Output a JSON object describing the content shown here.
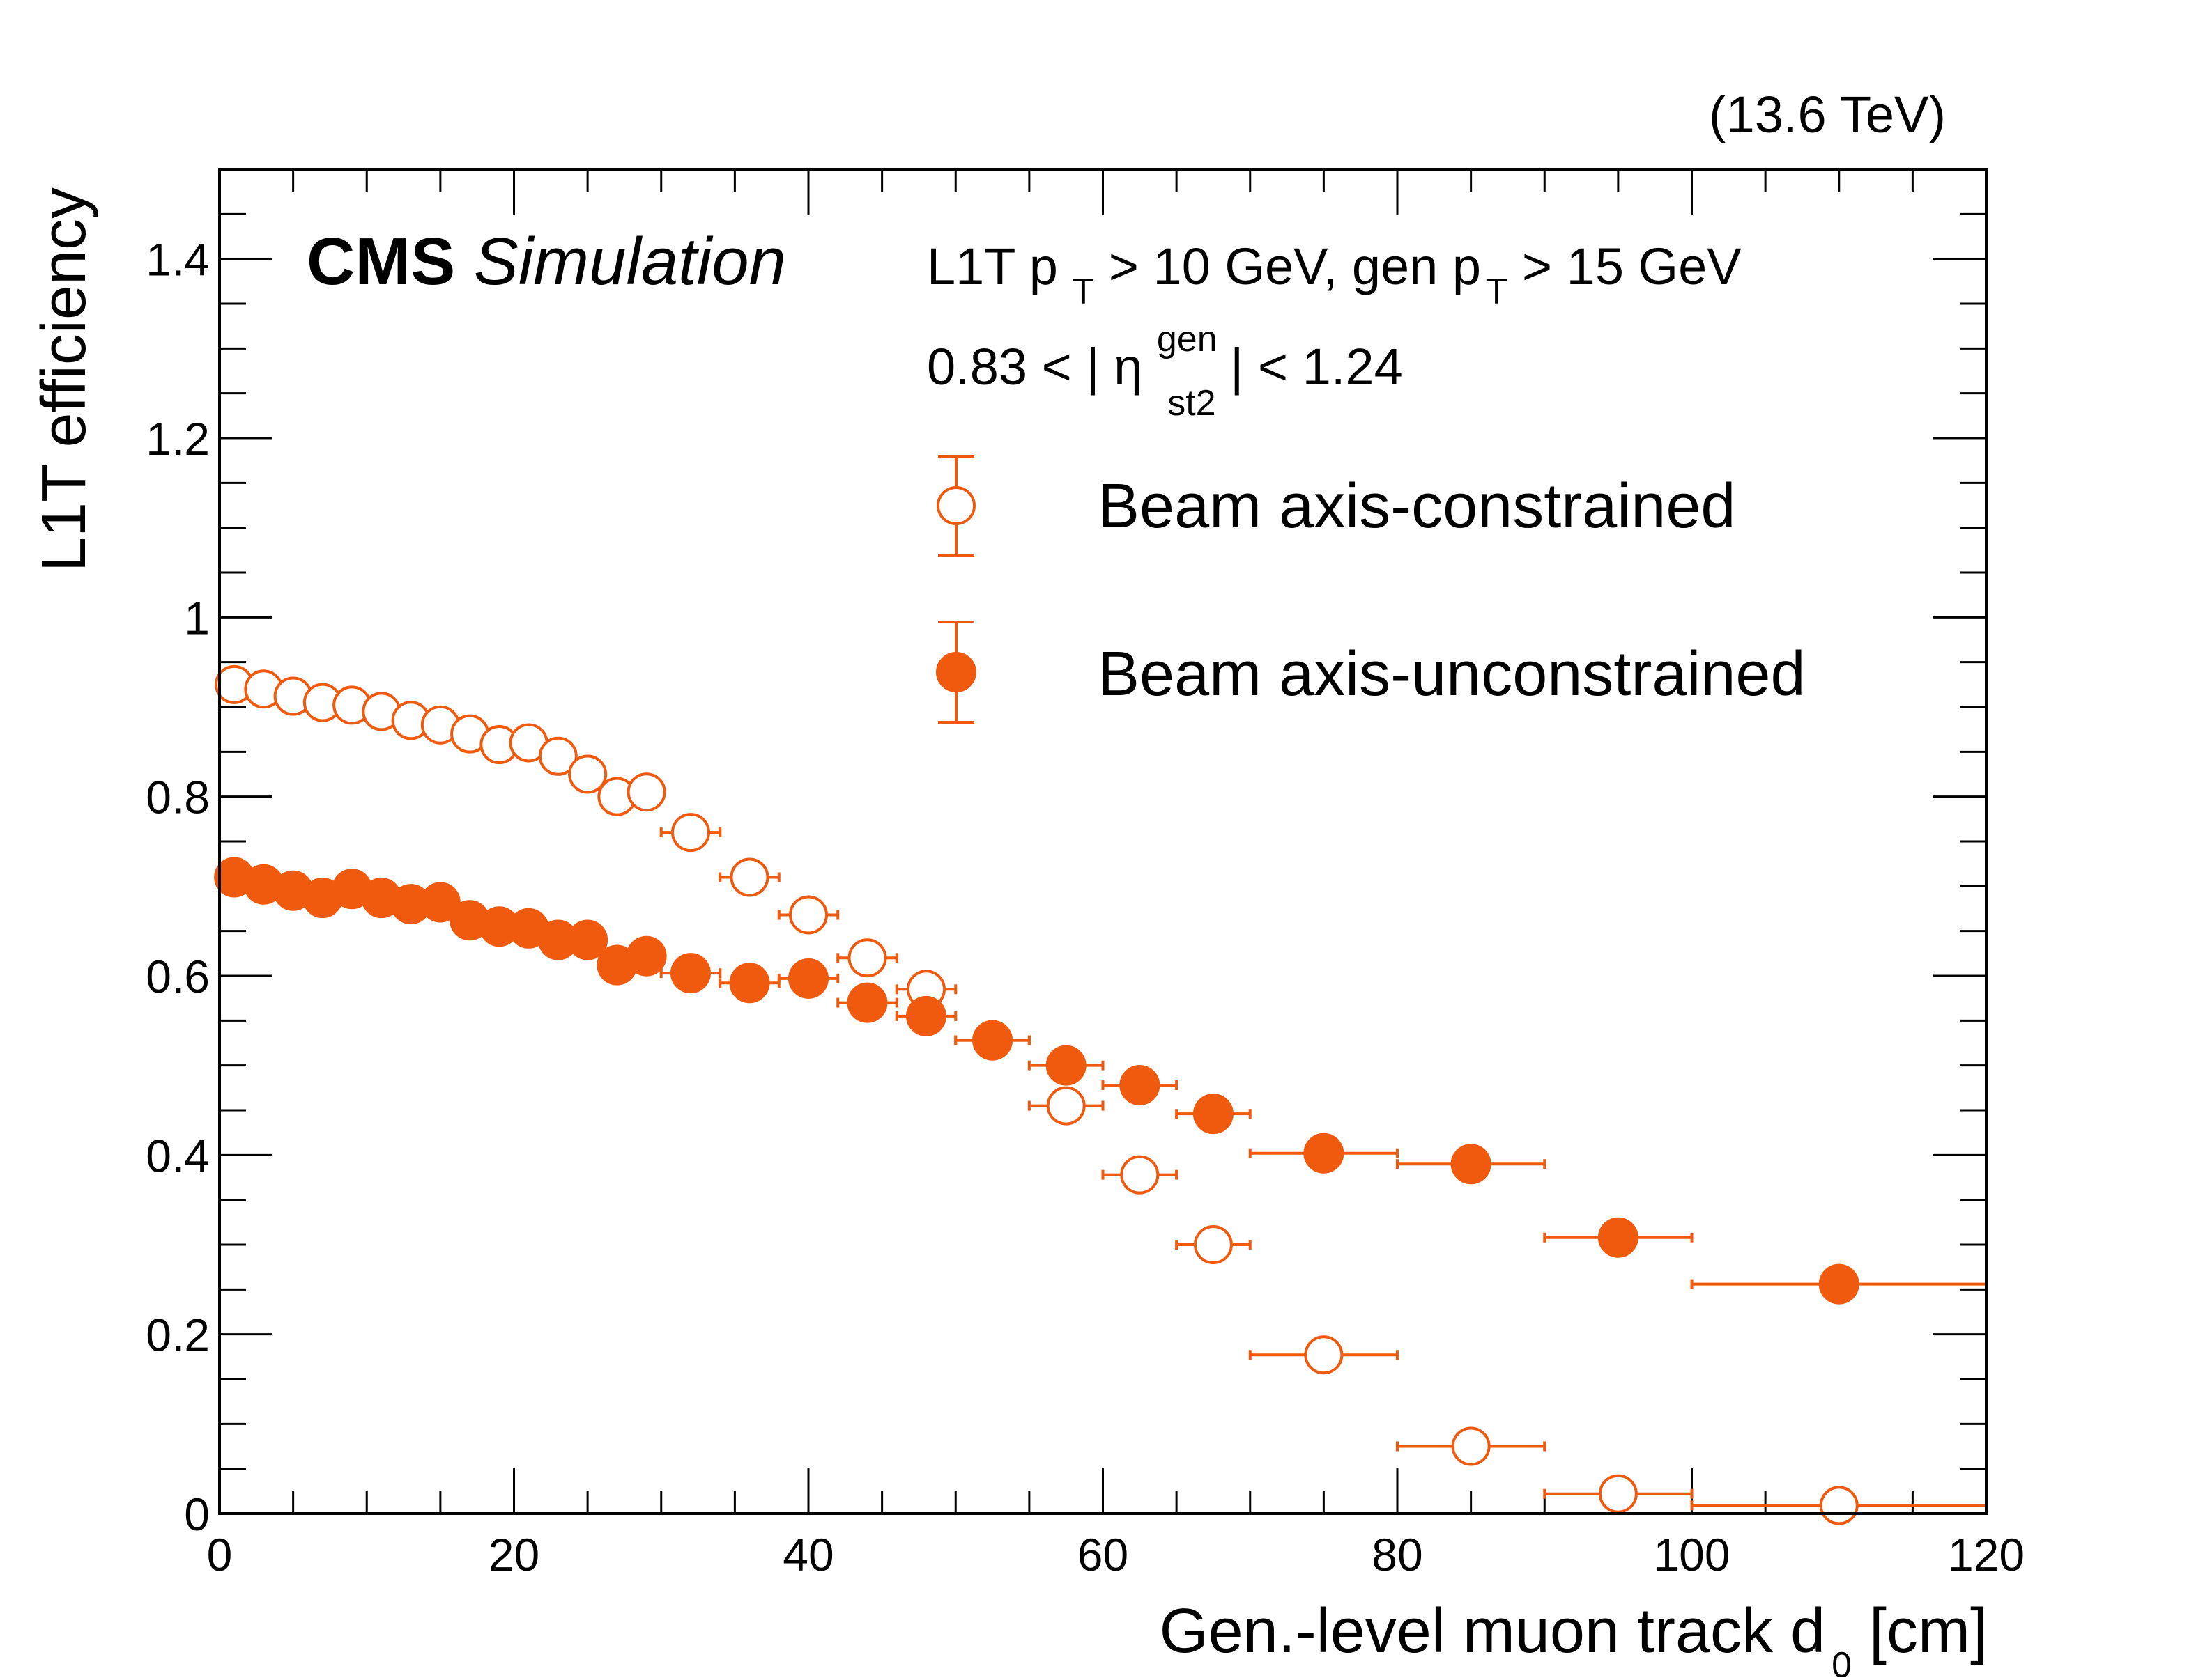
{
  "chart_data": {
    "type": "scatter",
    "experiment": "CMS",
    "label": "Simulation",
    "energy": "(13.6 TeV)",
    "xlabel": {
      "main": "Gen.-level muon track d",
      "sub": "0",
      "unit": " [cm]"
    },
    "ylabel": "L1T efficiency",
    "xlim": [
      0,
      120
    ],
    "ylim": [
      0,
      1.5
    ],
    "xticks": [
      0,
      20,
      40,
      60,
      80,
      100,
      120
    ],
    "xtick_labels": [
      "0",
      "20",
      "40",
      "60",
      "80",
      "100",
      "120"
    ],
    "yticks": [
      0,
      0.2,
      0.4,
      0.6,
      0.8,
      1,
      1.2,
      1.4
    ],
    "ytick_labels": [
      "0",
      "0.2",
      "0.4",
      "0.6",
      "0.8",
      "1",
      "1.2",
      "1.4"
    ],
    "selection": {
      "pt_l1t": "L1T p",
      "pt_sub": "T",
      "pt_l1t_rest": " > 10 GeV, gen p",
      "pt_gen_sub": "T",
      "pt_gen_rest": " > 15 GeV",
      "eta_pre": "0.83 < |",
      "eta_sym": "η",
      "eta_sup": "gen",
      "eta_sub": "st2",
      "eta_post": "| < 1.24"
    },
    "color": "#f05a0e",
    "series": [
      {
        "name": "Beam axis-constrained",
        "marker": "open-circle",
        "points": [
          {
            "x": 1,
            "xerr": 1,
            "y": 0.925
          },
          {
            "x": 3,
            "xerr": 1,
            "y": 0.92
          },
          {
            "x": 5,
            "xerr": 1,
            "y": 0.912
          },
          {
            "x": 7,
            "xerr": 1,
            "y": 0.905
          },
          {
            "x": 9,
            "xerr": 1,
            "y": 0.902
          },
          {
            "x": 11,
            "xerr": 1,
            "y": 0.895
          },
          {
            "x": 13,
            "xerr": 1,
            "y": 0.885
          },
          {
            "x": 15,
            "xerr": 1,
            "y": 0.88
          },
          {
            "x": 17,
            "xerr": 1,
            "y": 0.87
          },
          {
            "x": 19,
            "xerr": 1,
            "y": 0.858
          },
          {
            "x": 21,
            "xerr": 1,
            "y": 0.86
          },
          {
            "x": 23,
            "xerr": 1,
            "y": 0.845
          },
          {
            "x": 25,
            "xerr": 1,
            "y": 0.825
          },
          {
            "x": 27,
            "xerr": 1,
            "y": 0.8
          },
          {
            "x": 29,
            "xerr": 1,
            "y": 0.805
          },
          {
            "x": 32,
            "xerr": 2,
            "y": 0.76
          },
          {
            "x": 36,
            "xerr": 2,
            "y": 0.71
          },
          {
            "x": 40,
            "xerr": 2,
            "y": 0.668
          },
          {
            "x": 44,
            "xerr": 2,
            "y": 0.62
          },
          {
            "x": 48,
            "xerr": 2,
            "y": 0.585
          },
          {
            "x": 52.5,
            "xerr": 2.5,
            "y": 0.528
          },
          {
            "x": 57.5,
            "xerr": 2.5,
            "y": 0.455
          },
          {
            "x": 62.5,
            "xerr": 2.5,
            "y": 0.378
          },
          {
            "x": 67.5,
            "xerr": 2.5,
            "y": 0.3
          },
          {
            "x": 75,
            "xerr": 5,
            "y": 0.177
          },
          {
            "x": 85,
            "xerr": 5,
            "y": 0.075
          },
          {
            "x": 95,
            "xerr": 5,
            "y": 0.022
          },
          {
            "x": 110,
            "xerr": 10,
            "y": 0.009
          }
        ]
      },
      {
        "name": "Beam axis-unconstrained",
        "marker": "filled-circle",
        "points": [
          {
            "x": 1,
            "xerr": 1,
            "y": 0.71
          },
          {
            "x": 3,
            "xerr": 1,
            "y": 0.702
          },
          {
            "x": 5,
            "xerr": 1,
            "y": 0.695
          },
          {
            "x": 7,
            "xerr": 1,
            "y": 0.687
          },
          {
            "x": 9,
            "xerr": 1,
            "y": 0.697
          },
          {
            "x": 11,
            "xerr": 1,
            "y": 0.687
          },
          {
            "x": 13,
            "xerr": 1,
            "y": 0.68
          },
          {
            "x": 15,
            "xerr": 1,
            "y": 0.682
          },
          {
            "x": 17,
            "xerr": 1,
            "y": 0.662
          },
          {
            "x": 19,
            "xerr": 1,
            "y": 0.655
          },
          {
            "x": 21,
            "xerr": 1,
            "y": 0.653
          },
          {
            "x": 23,
            "xerr": 1,
            "y": 0.64
          },
          {
            "x": 25,
            "xerr": 1,
            "y": 0.64
          },
          {
            "x": 27,
            "xerr": 1,
            "y": 0.612
          },
          {
            "x": 29,
            "xerr": 1,
            "y": 0.622
          },
          {
            "x": 32,
            "xerr": 2,
            "y": 0.603
          },
          {
            "x": 36,
            "xerr": 2,
            "y": 0.592
          },
          {
            "x": 40,
            "xerr": 2,
            "y": 0.597
          },
          {
            "x": 44,
            "xerr": 2,
            "y": 0.57
          },
          {
            "x": 48,
            "xerr": 2,
            "y": 0.555
          },
          {
            "x": 52.5,
            "xerr": 2.5,
            "y": 0.528
          },
          {
            "x": 57.5,
            "xerr": 2.5,
            "y": 0.5
          },
          {
            "x": 62.5,
            "xerr": 2.5,
            "y": 0.478
          },
          {
            "x": 67.5,
            "xerr": 2.5,
            "y": 0.446
          },
          {
            "x": 75,
            "xerr": 5,
            "y": 0.402
          },
          {
            "x": 85,
            "xerr": 5,
            "y": 0.39
          },
          {
            "x": 95,
            "xerr": 5,
            "y": 0.308
          },
          {
            "x": 110,
            "xerr": 10,
            "y": 0.256
          }
        ]
      }
    ]
  }
}
